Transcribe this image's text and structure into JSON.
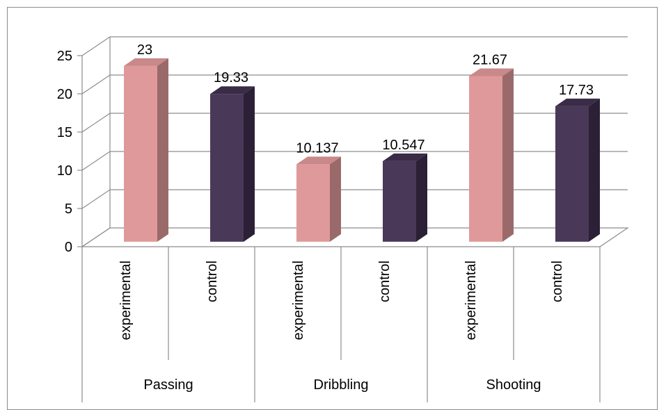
{
  "chart_data": {
    "type": "bar",
    "style": "3d-clustered-column",
    "groups": [
      "Passing",
      "Dribbling",
      "Shooting"
    ],
    "subcategories": [
      "experimental",
      "control"
    ],
    "values": [
      {
        "group": "Passing",
        "subcategory": "experimental",
        "value": 23,
        "label": "23"
      },
      {
        "group": "Passing",
        "subcategory": "control",
        "value": 19.33,
        "label": "19.33"
      },
      {
        "group": "Dribbling",
        "subcategory": "experimental",
        "value": 10.137,
        "label": "10.137"
      },
      {
        "group": "Dribbling",
        "subcategory": "control",
        "value": 10.547,
        "label": "10.547"
      },
      {
        "group": "Shooting",
        "subcategory": "experimental",
        "value": 21.67,
        "label": "21.67"
      },
      {
        "group": "Shooting",
        "subcategory": "control",
        "value": 17.73,
        "label": "17.73"
      }
    ],
    "ylim": [
      0,
      25
    ],
    "yticks": [
      0,
      5,
      10,
      15,
      20,
      25
    ],
    "grid": true,
    "legend": "none",
    "colors": {
      "experimental": {
        "front": "#E0999A",
        "side": "#9A6A6B",
        "top": "#C98889"
      },
      "control": {
        "front": "#4A3859",
        "side": "#2B2036",
        "top": "#3A2C47"
      },
      "gridline": "#8C8C8C",
      "axis": "#8C8C8C"
    }
  }
}
